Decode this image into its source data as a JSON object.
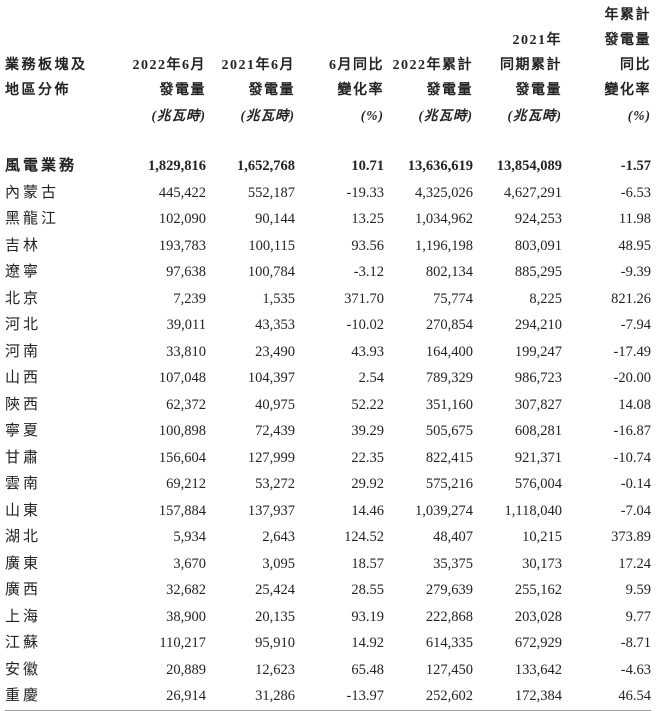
{
  "colors": {
    "text": "#232323",
    "bottom_rule": "#9e9e9e",
    "background": "#ffffff"
  },
  "table": {
    "header_rows": [
      [
        "",
        "",
        "",
        "",
        "",
        "",
        "年累計"
      ],
      [
        "",
        "",
        "",
        "",
        "",
        "2021年",
        "發電量"
      ],
      [
        "業務板塊及",
        "2022年6月",
        "2021年6月",
        "6月同比",
        "2022年累計",
        "同期累計",
        "同比"
      ],
      [
        "地區分佈",
        "發電量",
        "發電量",
        "變化率",
        "發電量",
        "發電量",
        "變化率"
      ],
      [
        "",
        "(兆瓦時)",
        "(兆瓦時)",
        "(%)",
        "(兆瓦時)",
        "(兆瓦時)",
        "(%)"
      ]
    ],
    "rows": [
      {
        "label": "風電業務",
        "bold": true,
        "values": [
          "1,829,816",
          "1,652,768",
          "10.71",
          "13,636,619",
          "13,854,089",
          "-1.57"
        ]
      },
      {
        "label": "內蒙古",
        "bold": false,
        "values": [
          "445,422",
          "552,187",
          "-19.33",
          "4,325,026",
          "4,627,291",
          "-6.53"
        ]
      },
      {
        "label": "黑龍江",
        "bold": false,
        "values": [
          "102,090",
          "90,144",
          "13.25",
          "1,034,962",
          "924,253",
          "11.98"
        ]
      },
      {
        "label": "吉林",
        "bold": false,
        "values": [
          "193,783",
          "100,115",
          "93.56",
          "1,196,198",
          "803,091",
          "48.95"
        ]
      },
      {
        "label": "遼寧",
        "bold": false,
        "values": [
          "97,638",
          "100,784",
          "-3.12",
          "802,134",
          "885,295",
          "-9.39"
        ]
      },
      {
        "label": "北京",
        "bold": false,
        "values": [
          "7,239",
          "1,535",
          "371.70",
          "75,774",
          "8,225",
          "821.26"
        ]
      },
      {
        "label": "河北",
        "bold": false,
        "values": [
          "39,011",
          "43,353",
          "-10.02",
          "270,854",
          "294,210",
          "-7.94"
        ]
      },
      {
        "label": "河南",
        "bold": false,
        "values": [
          "33,810",
          "23,490",
          "43.93",
          "164,400",
          "199,247",
          "-17.49"
        ]
      },
      {
        "label": "山西",
        "bold": false,
        "values": [
          "107,048",
          "104,397",
          "2.54",
          "789,329",
          "986,723",
          "-20.00"
        ]
      },
      {
        "label": "陝西",
        "bold": false,
        "values": [
          "62,372",
          "40,975",
          "52.22",
          "351,160",
          "307,827",
          "14.08"
        ]
      },
      {
        "label": "寧夏",
        "bold": false,
        "values": [
          "100,898",
          "72,439",
          "39.29",
          "505,675",
          "608,281",
          "-16.87"
        ]
      },
      {
        "label": "甘肅",
        "bold": false,
        "values": [
          "156,604",
          "127,999",
          "22.35",
          "822,415",
          "921,371",
          "-10.74"
        ]
      },
      {
        "label": "雲南",
        "bold": false,
        "values": [
          "69,212",
          "53,272",
          "29.92",
          "575,216",
          "576,004",
          "-0.14"
        ]
      },
      {
        "label": "山東",
        "bold": false,
        "values": [
          "157,884",
          "137,937",
          "14.46",
          "1,039,274",
          "1,118,040",
          "-7.04"
        ]
      },
      {
        "label": "湖北",
        "bold": false,
        "values": [
          "5,934",
          "2,643",
          "124.52",
          "48,407",
          "10,215",
          "373.89"
        ]
      },
      {
        "label": "廣東",
        "bold": false,
        "values": [
          "3,670",
          "3,095",
          "18.57",
          "35,375",
          "30,173",
          "17.24"
        ]
      },
      {
        "label": "廣西",
        "bold": false,
        "values": [
          "32,682",
          "25,424",
          "28.55",
          "279,639",
          "255,162",
          "9.59"
        ]
      },
      {
        "label": "上海",
        "bold": false,
        "values": [
          "38,900",
          "20,135",
          "93.19",
          "222,868",
          "203,028",
          "9.77"
        ]
      },
      {
        "label": "江蘇",
        "bold": false,
        "values": [
          "110,217",
          "95,910",
          "14.92",
          "614,335",
          "672,929",
          "-8.71"
        ]
      },
      {
        "label": "安徽",
        "bold": false,
        "values": [
          "20,889",
          "12,623",
          "65.48",
          "127,450",
          "133,642",
          "-4.63"
        ]
      },
      {
        "label": "重慶",
        "bold": false,
        "values": [
          "26,914",
          "31,286",
          "-13.97",
          "252,602",
          "172,384",
          "46.54"
        ]
      }
    ]
  }
}
